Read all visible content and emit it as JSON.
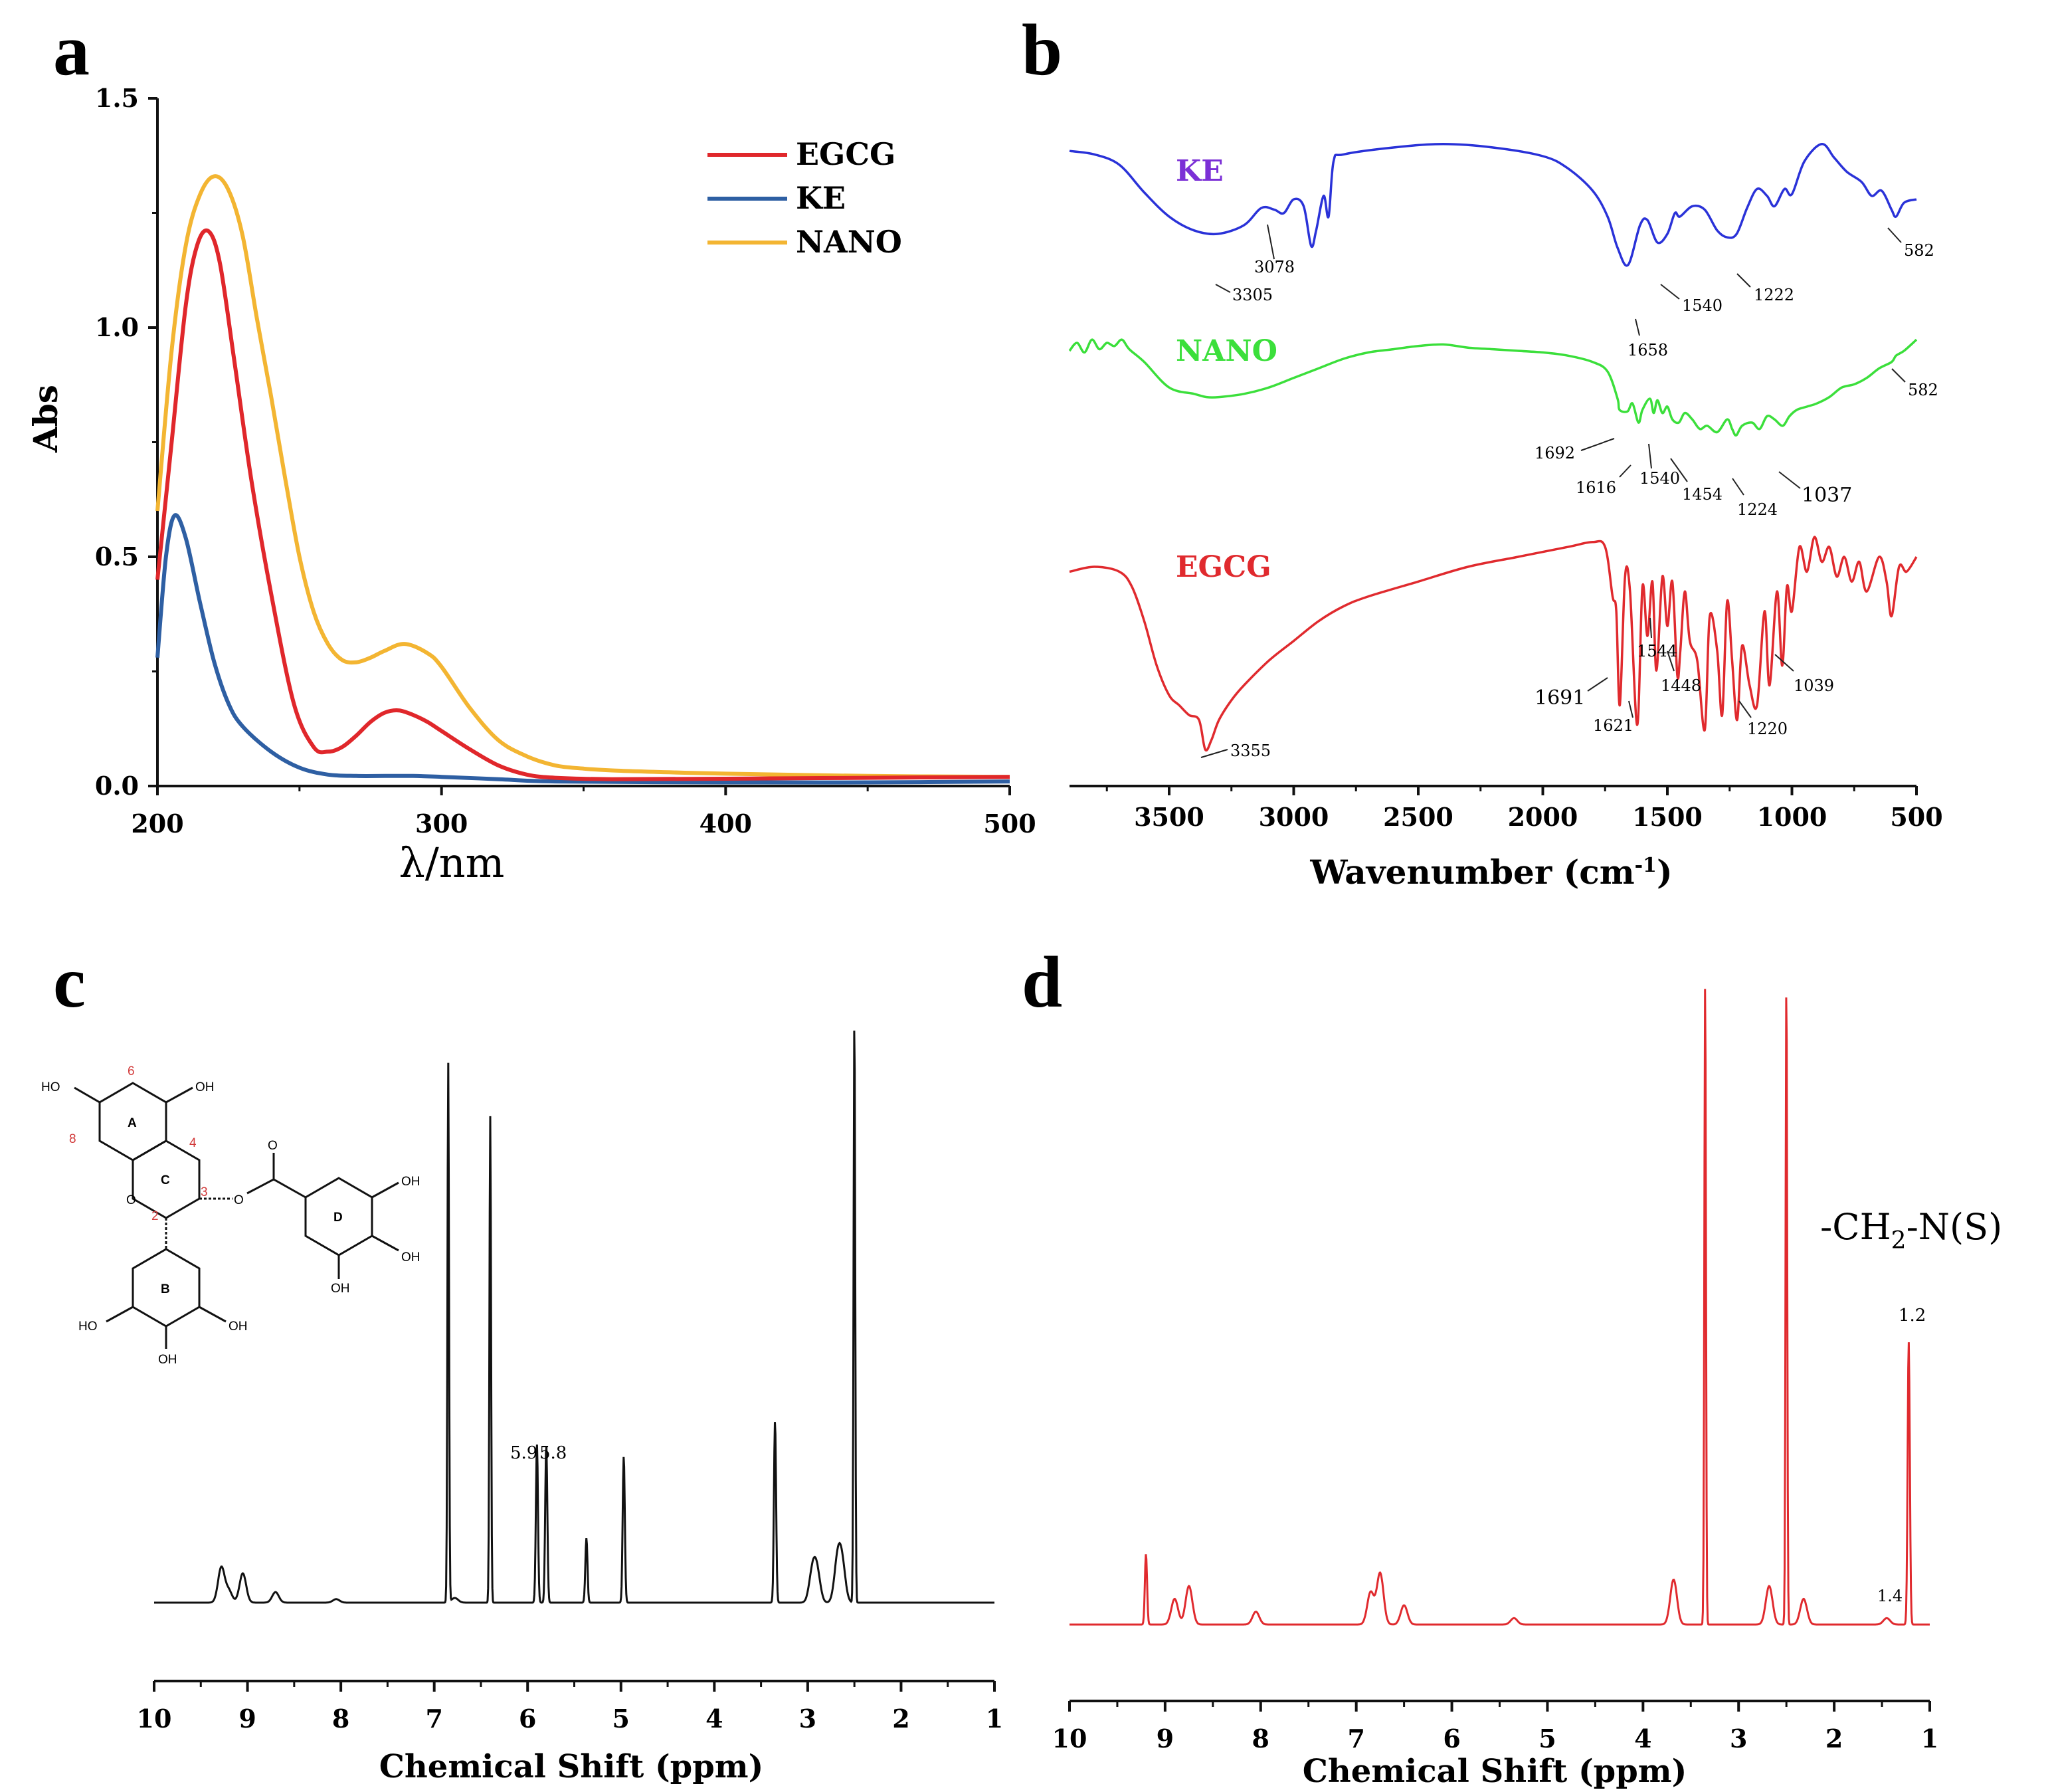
{
  "colors": {
    "EGCG": "#e0272b",
    "KE": "#2e5fa3",
    "NANO": "#f3b532",
    "ir_KE": "#2a32d8",
    "ir_NANO": "#3bdf3b",
    "ir_EGCG": "#e02a2e",
    "ir_KE_label": "#7b2fd6",
    "nmr_c": "#111111",
    "nmr_d": "#e02a2e",
    "struct_number": "#d23a3a"
  },
  "panels": {
    "a": {
      "letter": "a"
    },
    "b": {
      "letter": "b"
    },
    "c": {
      "letter": "c"
    },
    "d": {
      "letter": "d"
    }
  },
  "chart_data": [
    {
      "id": "a",
      "type": "line",
      "title": "",
      "xlabel": "λ/nm",
      "ylabel": "Abs",
      "xlim": [
        200,
        500
      ],
      "ylim": [
        0,
        1.5
      ],
      "xticks": [
        "200",
        "300",
        "400",
        "500"
      ],
      "yticks": [
        "0.0",
        "0.5",
        "1.0",
        "1.5"
      ],
      "legend": [
        "EGCG",
        "KE",
        "NANO"
      ],
      "legend_position": "top-right",
      "series": [
        {
          "name": "EGCG",
          "x": [
            200,
            205,
            210,
            214,
            218,
            222,
            227,
            233,
            240,
            248,
            255,
            260,
            265,
            270,
            275,
            280,
            285,
            290,
            295,
            300,
            310,
            320,
            330,
            340,
            360,
            400,
            450,
            500
          ],
          "y": [
            0.45,
            0.75,
            1.05,
            1.18,
            1.21,
            1.14,
            0.93,
            0.67,
            0.42,
            0.18,
            0.085,
            0.075,
            0.085,
            0.11,
            0.14,
            0.16,
            0.165,
            0.155,
            0.14,
            0.12,
            0.08,
            0.045,
            0.025,
            0.018,
            0.015,
            0.016,
            0.018,
            0.02
          ]
        },
        {
          "name": "KE",
          "x": [
            200,
            203,
            206,
            210,
            215,
            220,
            225,
            230,
            240,
            250,
            260,
            270,
            280,
            290,
            300,
            320,
            340,
            400,
            450,
            500
          ],
          "y": [
            0.28,
            0.5,
            0.59,
            0.54,
            0.4,
            0.27,
            0.18,
            0.13,
            0.075,
            0.04,
            0.025,
            0.022,
            0.022,
            0.022,
            0.02,
            0.015,
            0.01,
            0.008,
            0.008,
            0.01
          ]
        },
        {
          "name": "NANO",
          "x": [
            200,
            205,
            210,
            215,
            220,
            225,
            230,
            235,
            240,
            245,
            250,
            255,
            260,
            265,
            270,
            275,
            280,
            287,
            295,
            300,
            310,
            320,
            330,
            340,
            350,
            360,
            380,
            400,
            450,
            500
          ],
          "y": [
            0.6,
            0.95,
            1.18,
            1.29,
            1.33,
            1.3,
            1.2,
            1.02,
            0.85,
            0.67,
            0.5,
            0.38,
            0.31,
            0.275,
            0.27,
            0.28,
            0.295,
            0.31,
            0.29,
            0.26,
            0.17,
            0.1,
            0.065,
            0.045,
            0.038,
            0.034,
            0.03,
            0.027,
            0.022,
            0.02
          ]
        }
      ]
    },
    {
      "id": "b",
      "type": "line",
      "title": "",
      "xlabel": "Wavenumber (cm⁻¹)",
      "xlabel_main": "Wavenumber (cm",
      "xlabel_sup": "-1",
      "xlabel_close": ")",
      "ylabel": "",
      "xlim": [
        3900,
        500
      ],
      "xticks": [
        "3500",
        "3000",
        "2500",
        "2000",
        "1500",
        "1000",
        "500"
      ],
      "series": [
        {
          "name": "KE",
          "x": [
            3900,
            3800,
            3700,
            3600,
            3500,
            3400,
            3305,
            3200,
            3130,
            3078,
            3040,
            3000,
            2960,
            2930,
            2910,
            2880,
            2860,
            2840,
            2800,
            2600,
            2400,
            2200,
            2000,
            1900,
            1800,
            1740,
            1700,
            1658,
            1610,
            1580,
            1540,
            1500,
            1470,
            1450,
            1400,
            1350,
            1300,
            1260,
            1222,
            1180,
            1140,
            1100,
            1070,
            1030,
            1000,
            950,
            880,
            830,
            780,
            720,
            680,
            640,
            600,
            582,
            550,
            500
          ],
          "y": [
            98,
            96,
            90,
            74,
            60,
            52,
            50,
            55,
            65,
            64,
            62,
            70,
            66,
            43,
            52,
            72,
            60,
            92,
            96,
            100,
            102,
            100,
            95,
            88,
            75,
            60,
            42,
            32,
            55,
            58,
            45,
            50,
            62,
            60,
            66,
            64,
            52,
            48,
            50,
            65,
            76,
            72,
            66,
            76,
            73,
            92,
            102,
            94,
            86,
            80,
            72,
            75,
            64,
            60,
            68,
            70
          ]
        },
        {
          "name": "NANO",
          "x": [
            3900,
            3870,
            3840,
            3810,
            3780,
            3750,
            3720,
            3690,
            3660,
            3600,
            3500,
            3400,
            3350,
            3300,
            3200,
            3100,
            3000,
            2900,
            2800,
            2700,
            2600,
            2500,
            2400,
            2300,
            2200,
            2100,
            2000,
            1900,
            1800,
            1740,
            1700,
            1692,
            1660,
            1640,
            1616,
            1600,
            1570,
            1555,
            1540,
            1520,
            1500,
            1480,
            1454,
            1430,
            1400,
            1370,
            1340,
            1300,
            1260,
            1240,
            1224,
            1200,
            1160,
            1130,
            1100,
            1070,
            1037,
            1010,
            980,
            940,
            900,
            850,
            800,
            750,
            700,
            650,
            600,
            582,
            550,
            500
          ],
          "y": [
            85,
            90,
            84,
            92,
            86,
            90,
            88,
            92,
            86,
            78,
            62,
            58,
            56,
            56,
            58,
            62,
            68,
            74,
            80,
            84,
            86,
            88,
            89,
            87,
            86,
            85,
            84,
            82,
            78,
            72,
            55,
            48,
            47,
            52,
            40,
            48,
            55,
            46,
            54,
            46,
            50,
            42,
            40,
            46,
            42,
            36,
            38,
            34,
            42,
            36,
            32,
            38,
            40,
            36,
            44,
            42,
            38,
            44,
            48,
            50,
            52,
            56,
            62,
            64,
            68,
            74,
            78,
            82,
            85,
            92
          ]
        },
        {
          "name": "EGCG",
          "x": [
            3900,
            3800,
            3700,
            3650,
            3600,
            3550,
            3500,
            3460,
            3420,
            3380,
            3355,
            3330,
            3300,
            3250,
            3200,
            3100,
            3000,
            2900,
            2800,
            2700,
            2500,
            2300,
            2100,
            1900,
            1800,
            1750,
            1720,
            1705,
            1691,
            1670,
            1650,
            1621,
            1600,
            1580,
            1560,
            1544,
            1520,
            1500,
            1480,
            1460,
            1448,
            1430,
            1410,
            1380,
            1350,
            1330,
            1300,
            1280,
            1260,
            1240,
            1220,
            1200,
            1170,
            1140,
            1110,
            1090,
            1060,
            1039,
            1020,
            1000,
            970,
            940,
            910,
            880,
            850,
            820,
            790,
            760,
            730,
            700,
            650,
            620,
            600,
            570,
            540,
            500
          ],
          "y": [
            80,
            82,
            80,
            74,
            60,
            42,
            30,
            26,
            22,
            20,
            8,
            12,
            20,
            28,
            34,
            44,
            52,
            60,
            66,
            70,
            76,
            82,
            86,
            90,
            92,
            90,
            70,
            64,
            26,
            78,
            72,
            18,
            74,
            54,
            76,
            40,
            78,
            58,
            76,
            38,
            48,
            72,
            52,
            44,
            16,
            62,
            48,
            22,
            68,
            44,
            20,
            50,
            34,
            26,
            64,
            34,
            72,
            42,
            74,
            64,
            90,
            80,
            94,
            84,
            90,
            78,
            86,
            76,
            84,
            72,
            86,
            76,
            62,
            82,
            80,
            86
          ]
        }
      ],
      "trace_labels": [
        "KE",
        "NANO",
        "EGCG"
      ],
      "annotations": {
        "KE": [
          "3305",
          "3078",
          "1658",
          "1540",
          "1222",
          "582"
        ],
        "NANO": [
          "1692",
          "1616",
          "1540",
          "1454",
          "1224",
          "1037",
          "582"
        ],
        "EGCG": [
          "3355",
          "1691",
          "1621",
          "1544",
          "1448",
          "1220",
          "1039"
        ]
      }
    },
    {
      "id": "c",
      "type": "line",
      "title": "",
      "xlabel": "Chemical Shift (ppm)",
      "xlim": [
        10,
        1
      ],
      "ylim": [
        0,
        1
      ],
      "xticks": [
        "10",
        "9",
        "8",
        "7",
        "6",
        "5",
        "4",
        "3",
        "2",
        "1"
      ],
      "peaks": [
        {
          "ppm": 9.28,
          "height": 0.06
        },
        {
          "ppm": 9.2,
          "height": 0.02
        },
        {
          "ppm": 9.05,
          "height": 0.05
        },
        {
          "ppm": 8.7,
          "height": 0.018
        },
        {
          "ppm": 8.05,
          "height": 0.006
        },
        {
          "ppm": 6.85,
          "height": 0.92
        },
        {
          "ppm": 6.78,
          "height": 0.008
        },
        {
          "ppm": 6.4,
          "height": 0.83
        },
        {
          "ppm": 5.9,
          "height": 0.27
        },
        {
          "ppm": 5.8,
          "height": 0.27
        },
        {
          "ppm": 5.37,
          "height": 0.11
        },
        {
          "ppm": 4.97,
          "height": 0.25
        },
        {
          "ppm": 3.35,
          "height": 0.31
        },
        {
          "ppm": 2.95,
          "height": 0.05
        },
        {
          "ppm": 2.9,
          "height": 0.05
        },
        {
          "ppm": 2.68,
          "height": 0.07
        },
        {
          "ppm": 2.63,
          "height": 0.06
        },
        {
          "ppm": 2.5,
          "height": 1.0
        }
      ],
      "peak_labels": [
        "5.9",
        "5.8"
      ],
      "structure": {
        "numbers": [
          "6",
          "8",
          "4",
          "2",
          "3"
        ],
        "rings": [
          "A",
          "C",
          "B",
          "D"
        ],
        "atoms": [
          "HO",
          "OH",
          "O",
          "O",
          "O",
          "OH",
          "OH",
          "OH",
          "HO",
          "OH",
          "OH"
        ]
      }
    },
    {
      "id": "d",
      "type": "line",
      "title": "",
      "xlabel": "Chemical Shift (ppm)",
      "xlim": [
        10,
        1
      ],
      "ylim": [
        0,
        1
      ],
      "xticks": [
        "10",
        "9",
        "8",
        "7",
        "6",
        "5",
        "4",
        "3",
        "2",
        "1"
      ],
      "peaks": [
        {
          "ppm": 9.2,
          "height": 0.11
        },
        {
          "ppm": 8.9,
          "height": 0.04
        },
        {
          "ppm": 8.75,
          "height": 0.06
        },
        {
          "ppm": 8.05,
          "height": 0.02
        },
        {
          "ppm": 6.85,
          "height": 0.05
        },
        {
          "ppm": 6.75,
          "height": 0.08
        },
        {
          "ppm": 6.5,
          "height": 0.03
        },
        {
          "ppm": 5.35,
          "height": 0.01
        },
        {
          "ppm": 3.68,
          "height": 0.07
        },
        {
          "ppm": 3.35,
          "height": 1.0
        },
        {
          "ppm": 2.68,
          "height": 0.06
        },
        {
          "ppm": 2.5,
          "height": 1.0
        },
        {
          "ppm": 2.32,
          "height": 0.04
        },
        {
          "ppm": 1.45,
          "height": 0.01
        },
        {
          "ppm": 1.22,
          "height": 0.44
        }
      ],
      "peak_labels": [
        "1.4",
        "1.2"
      ],
      "annotation": {
        "text": "-CH",
        "sub": "2",
        "rest": "-N(S)"
      }
    }
  ]
}
